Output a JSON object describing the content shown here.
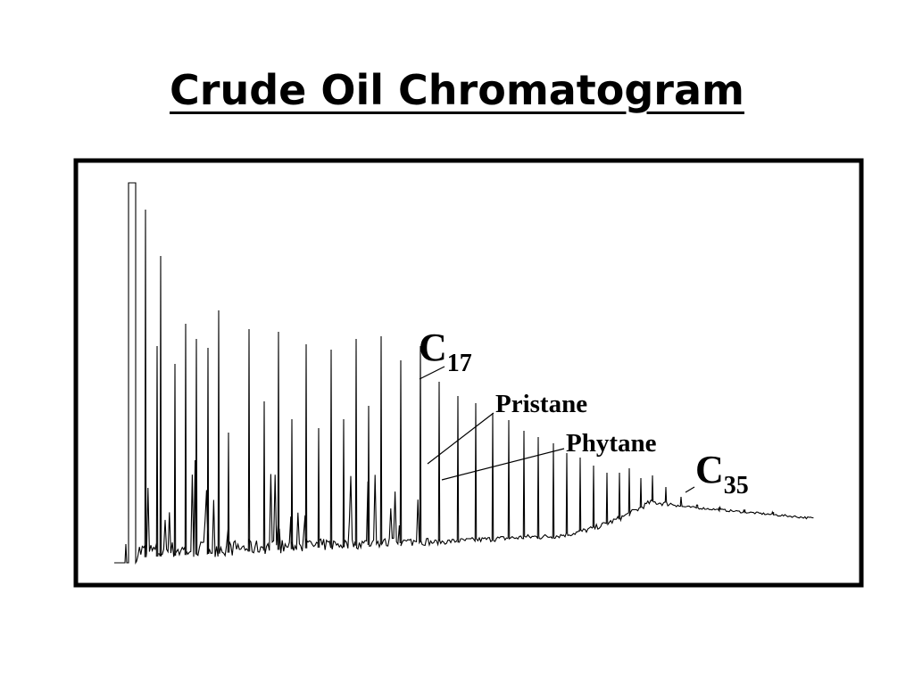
{
  "title": "Crude Oil Chromatogram",
  "labels": {
    "c17": {
      "base": "C",
      "sub": "17"
    },
    "pristane": "Pristane",
    "phytane": "Phytane",
    "c35": {
      "base": "C",
      "sub": "35"
    }
  }
}
